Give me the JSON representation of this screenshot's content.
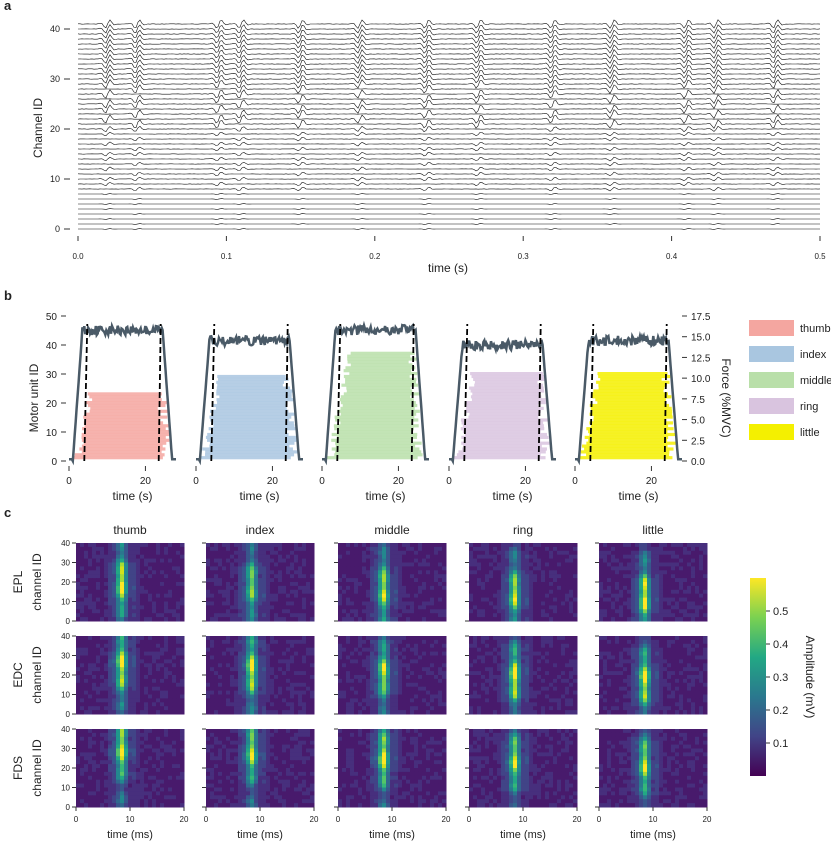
{
  "panel_a": {
    "label": "a",
    "chart_data": {
      "type": "line",
      "title": "",
      "xlabel": "time (s)",
      "ylabel": "Channel ID",
      "xlim": [
        0,
        0.5
      ],
      "ylim": [
        0,
        41
      ],
      "x_ticks": [
        "0.0",
        "0.1",
        "0.2",
        "0.3",
        "0.4",
        "0.5"
      ],
      "y_ticks": [
        "0",
        "10",
        "20",
        "30",
        "40"
      ],
      "channel_count": 42,
      "spike_times_s": [
        0.02,
        0.04,
        0.095,
        0.11,
        0.15,
        0.19,
        0.235,
        0.27,
        0.32,
        0.36,
        0.41,
        0.43,
        0.47
      ]
    }
  },
  "panel_b": {
    "label": "b",
    "chart_data": {
      "type": "scatter",
      "xlabel": "time (s)",
      "ylabel": "Motor unit ID",
      "y2label": "Force (%MVC)",
      "xlim": [
        0,
        28
      ],
      "ylim": [
        0,
        50
      ],
      "y2lim": [
        0,
        17.5
      ],
      "x_ticks": [
        "0",
        "20"
      ],
      "y_ticks": [
        "0",
        "10",
        "20",
        "30",
        "40",
        "50"
      ],
      "y2_ticks": [
        "0.0",
        "2.5",
        "5.0",
        "7.5",
        "10.0",
        "12.5",
        "15.0",
        "17.5"
      ],
      "plateau_force_pct_mvc": [
        15.8,
        14.5,
        15.8,
        14.0,
        14.5
      ],
      "window_s": [
        4,
        24
      ],
      "series": [
        {
          "name": "thumb",
          "color": "#f4a6a0",
          "motor_units": 23
        },
        {
          "name": "index",
          "color": "#a9c6e0",
          "motor_units": 29
        },
        {
          "name": "middle",
          "color": "#b9dfa9",
          "motor_units": 37
        },
        {
          "name": "ring",
          "color": "#d9c4df",
          "motor_units": 30
        },
        {
          "name": "little",
          "color": "#f4f000",
          "motor_units": 30
        }
      ]
    }
  },
  "panel_c": {
    "label": "c",
    "chart_data": {
      "type": "heatmap",
      "columns": [
        "thumb",
        "index",
        "middle",
        "ring",
        "little"
      ],
      "rows": [
        "EPL",
        "EDC",
        "FDS"
      ],
      "row_ylabel": "channel ID",
      "xlabel": "time (ms)",
      "xlim": [
        0,
        20
      ],
      "ylim": [
        0,
        40
      ],
      "x_ticks": [
        "0",
        "10",
        "20"
      ],
      "y_ticks": [
        "0",
        "10",
        "20",
        "30",
        "40"
      ],
      "colorbar": {
        "label": "Amplitude (mV)",
        "range": [
          0,
          0.6
        ],
        "ticks": [
          "0.1",
          "0.2",
          "0.3",
          "0.4",
          "0.5"
        ]
      },
      "peak_amplitude_mV": [
        [
          0.55,
          0.45,
          0.5,
          0.5,
          0.55
        ],
        [
          0.55,
          0.55,
          0.5,
          0.55,
          0.55
        ],
        [
          0.55,
          0.5,
          0.55,
          0.5,
          0.5
        ]
      ]
    }
  }
}
